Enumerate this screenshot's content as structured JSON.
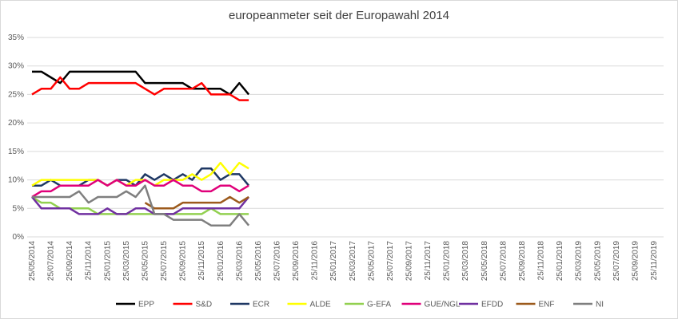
{
  "chart_data": {
    "type": "line",
    "title": "europeanmeter seit der Europawahl 2014",
    "categories": [
      "25/05/2014",
      null,
      "25/07/2014",
      null,
      "25/09/2014",
      null,
      "25/11/2014",
      null,
      "25/01/2015",
      null,
      "25/03/2015",
      null,
      "25/05/2015",
      null,
      "25/07/2015",
      null,
      "25/09/2015",
      null,
      "25/11/2015",
      null,
      "25/01/2016",
      null,
      "25/03/2016",
      null,
      "25/05/2016",
      null,
      "25/07/2016",
      null,
      "25/09/2016",
      null,
      "25/11/2016",
      null,
      "25/01/2017",
      null,
      "25/03/2017",
      null,
      "25/05/2017",
      null,
      "25/07/2017",
      null,
      "25/09/2017",
      null,
      "25/11/2017",
      null,
      "25/01/2018",
      null,
      "25/03/2018",
      null,
      "25/05/2018",
      null,
      "25/07/2018",
      null,
      "25/09/2018",
      null,
      "25/11/2018",
      null,
      "25/01/2019",
      null,
      "25/03/2019",
      null,
      "25/05/2019",
      null,
      "25/07/2019",
      null,
      "25/09/2019",
      null,
      "25/11/2019"
    ],
    "series": [
      {
        "name": "EPP",
        "color": "#000000",
        "values": [
          29,
          29,
          28,
          27,
          29,
          29,
          29,
          29,
          29,
          29,
          29,
          29,
          27,
          27,
          27,
          27,
          27,
          26,
          26,
          26,
          26,
          25,
          27,
          25,
          null,
          null,
          null,
          null,
          null,
          null,
          null,
          null,
          null,
          null,
          null,
          null,
          null,
          null,
          null,
          null,
          null,
          null,
          null,
          null,
          null,
          null,
          null,
          null,
          null,
          null,
          null,
          null,
          null,
          null,
          null,
          null,
          null,
          null,
          null,
          null,
          null,
          null,
          null,
          null,
          null,
          null,
          null
        ]
      },
      {
        "name": "S&D",
        "color": "#ff0000",
        "values": [
          25,
          26,
          26,
          28,
          26,
          26,
          27,
          27,
          27,
          27,
          27,
          27,
          26,
          25,
          26,
          26,
          26,
          26,
          27,
          25,
          25,
          25,
          24,
          24,
          null,
          null,
          null,
          null,
          null,
          null,
          null,
          null,
          null,
          null,
          null,
          null,
          null,
          null,
          null,
          null,
          null,
          null,
          null,
          null,
          null,
          null,
          null,
          null,
          null,
          null,
          null,
          null,
          null,
          null,
          null,
          null,
          null,
          null,
          null,
          null,
          null,
          null,
          null,
          null,
          null,
          null,
          null
        ]
      },
      {
        "name": "ECR",
        "color": "#1f3864",
        "values": [
          9,
          9,
          10,
          9,
          9,
          9,
          10,
          10,
          9,
          10,
          10,
          9,
          11,
          10,
          11,
          10,
          11,
          10,
          12,
          12,
          10,
          11,
          11,
          9,
          null,
          null,
          null,
          null,
          null,
          null,
          null,
          null,
          null,
          null,
          null,
          null,
          null,
          null,
          null,
          null,
          null,
          null,
          null,
          null,
          null,
          null,
          null,
          null,
          null,
          null,
          null,
          null,
          null,
          null,
          null,
          null,
          null,
          null,
          null,
          null,
          null,
          null,
          null,
          null,
          null,
          null,
          null
        ]
      },
      {
        "name": "ALDE",
        "color": "#ffff00",
        "values": [
          9,
          10,
          10,
          10,
          10,
          10,
          10,
          10,
          9,
          10,
          9,
          10,
          10,
          9,
          10,
          10,
          10,
          11,
          10,
          11,
          13,
          11,
          13,
          12,
          null,
          null,
          null,
          null,
          null,
          null,
          null,
          null,
          null,
          null,
          null,
          null,
          null,
          null,
          null,
          null,
          null,
          null,
          null,
          null,
          null,
          null,
          null,
          null,
          null,
          null,
          null,
          null,
          null,
          null,
          null,
          null,
          null,
          null,
          null,
          null,
          null,
          null,
          null,
          null,
          null,
          null,
          null
        ]
      },
      {
        "name": "G-EFA",
        "color": "#92d050",
        "values": [
          7,
          6,
          6,
          5,
          5,
          5,
          5,
          4,
          4,
          4,
          4,
          4,
          4,
          4,
          4,
          4,
          4,
          4,
          4,
          5,
          4,
          4,
          4,
          4,
          null,
          null,
          null,
          null,
          null,
          null,
          null,
          null,
          null,
          null,
          null,
          null,
          null,
          null,
          null,
          null,
          null,
          null,
          null,
          null,
          null,
          null,
          null,
          null,
          null,
          null,
          null,
          null,
          null,
          null,
          null,
          null,
          null,
          null,
          null,
          null,
          null,
          null,
          null,
          null,
          null,
          null,
          null
        ]
      },
      {
        "name": "GUE/NGL",
        "color": "#e0007a",
        "values": [
          7,
          8,
          8,
          9,
          9,
          9,
          9,
          10,
          9,
          10,
          9,
          9,
          10,
          9,
          9,
          10,
          9,
          9,
          8,
          8,
          9,
          9,
          8,
          9,
          null,
          null,
          null,
          null,
          null,
          null,
          null,
          null,
          null,
          null,
          null,
          null,
          null,
          null,
          null,
          null,
          null,
          null,
          null,
          null,
          null,
          null,
          null,
          null,
          null,
          null,
          null,
          null,
          null,
          null,
          null,
          null,
          null,
          null,
          null,
          null,
          null,
          null,
          null,
          null,
          null,
          null,
          null
        ]
      },
      {
        "name": "EFDD",
        "color": "#7030a0",
        "values": [
          7,
          5,
          5,
          5,
          5,
          4,
          4,
          4,
          5,
          4,
          4,
          5,
          5,
          4,
          4,
          4,
          5,
          5,
          5,
          5,
          5,
          5,
          5,
          7,
          null,
          null,
          null,
          null,
          null,
          null,
          null,
          null,
          null,
          null,
          null,
          null,
          null,
          null,
          null,
          null,
          null,
          null,
          null,
          null,
          null,
          null,
          null,
          null,
          null,
          null,
          null,
          null,
          null,
          null,
          null,
          null,
          null,
          null,
          null,
          null,
          null,
          null,
          null,
          null,
          null,
          null,
          null
        ]
      },
      {
        "name": "ENF",
        "color": "#9c5a1c",
        "values": [
          null,
          null,
          null,
          null,
          null,
          null,
          null,
          null,
          null,
          null,
          null,
          null,
          6,
          5,
          5,
          5,
          6,
          6,
          6,
          6,
          6,
          7,
          6,
          7,
          null,
          null,
          null,
          null,
          null,
          null,
          null,
          null,
          null,
          null,
          null,
          null,
          null,
          null,
          null,
          null,
          null,
          null,
          null,
          null,
          null,
          null,
          null,
          null,
          null,
          null,
          null,
          null,
          null,
          null,
          null,
          null,
          null,
          null,
          null,
          null,
          null,
          null,
          null,
          null,
          null,
          null,
          null
        ]
      },
      {
        "name": "NI",
        "color": "#7f7f7f",
        "values": [
          7,
          7,
          7,
          7,
          7,
          8,
          6,
          7,
          7,
          7,
          8,
          7,
          9,
          4,
          4,
          3,
          3,
          3,
          3,
          2,
          2,
          2,
          4,
          2,
          null,
          null,
          null,
          null,
          null,
          null,
          null,
          null,
          null,
          null,
          null,
          null,
          null,
          null,
          null,
          null,
          null,
          null,
          null,
          null,
          null,
          null,
          null,
          null,
          null,
          null,
          null,
          null,
          null,
          null,
          null,
          null,
          null,
          null,
          null,
          null,
          null,
          null,
          null,
          null,
          null,
          null,
          null
        ]
      }
    ],
    "ylim": [
      0,
      35
    ],
    "yticks": [
      {
        "value": 0,
        "label": "0%"
      },
      {
        "value": 5,
        "label": "5%"
      },
      {
        "value": 10,
        "label": "10%"
      },
      {
        "value": 15,
        "label": "15%"
      },
      {
        "value": 20,
        "label": "20%"
      },
      {
        "value": 25,
        "label": "25%"
      },
      {
        "value": 30,
        "label": "30%"
      },
      {
        "value": 35,
        "label": "35%"
      }
    ],
    "grid": true
  }
}
